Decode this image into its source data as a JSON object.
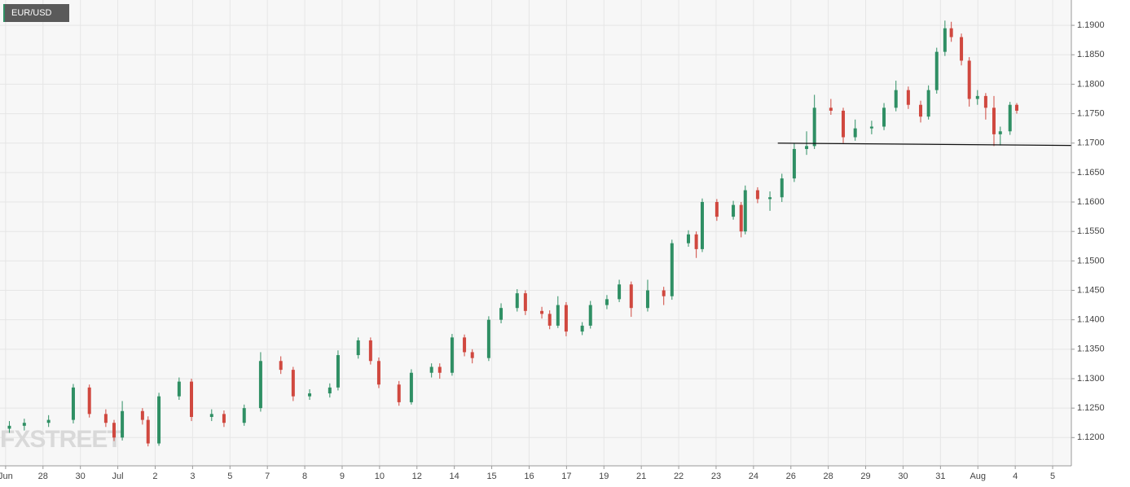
{
  "chart_data": {
    "type": "candlestick",
    "title": "EUR/USD",
    "watermark": "FXSTREET",
    "up_color": "#2f8f64",
    "down_color": "#d0483f",
    "grid": true,
    "xlim": [
      -0.15,
      28.5
    ],
    "ylim": [
      1.1152,
      1.1943
    ],
    "xticks": [
      {
        "value": 0,
        "label": "Jun"
      },
      {
        "value": 1,
        "label": "28"
      },
      {
        "value": 2,
        "label": "30"
      },
      {
        "value": 3,
        "label": "Jul"
      },
      {
        "value": 4,
        "label": "2"
      },
      {
        "value": 5,
        "label": "3"
      },
      {
        "value": 6,
        "label": "5"
      },
      {
        "value": 7,
        "label": "7"
      },
      {
        "value": 8,
        "label": "8"
      },
      {
        "value": 9,
        "label": "9"
      },
      {
        "value": 10,
        "label": "10"
      },
      {
        "value": 11,
        "label": "12"
      },
      {
        "value": 12,
        "label": "14"
      },
      {
        "value": 13,
        "label": "15"
      },
      {
        "value": 14,
        "label": "16"
      },
      {
        "value": 15,
        "label": "17"
      },
      {
        "value": 16,
        "label": "19"
      },
      {
        "value": 17,
        "label": "21"
      },
      {
        "value": 18,
        "label": "22"
      },
      {
        "value": 19,
        "label": "23"
      },
      {
        "value": 20,
        "label": "24"
      },
      {
        "value": 21,
        "label": "26"
      },
      {
        "value": 22,
        "label": "28"
      },
      {
        "value": 23,
        "label": "29"
      },
      {
        "value": 24,
        "label": "30"
      },
      {
        "value": 25,
        "label": "31"
      },
      {
        "value": 26,
        "label": "Aug"
      },
      {
        "value": 27,
        "label": "4"
      },
      {
        "value": 28,
        "label": "5"
      }
    ],
    "yticks": [
      {
        "value": 1.12,
        "label": "1.1200"
      },
      {
        "value": 1.125,
        "label": "1.1250"
      },
      {
        "value": 1.13,
        "label": "1.1300"
      },
      {
        "value": 1.135,
        "label": "1.1350"
      },
      {
        "value": 1.14,
        "label": "1.1400"
      },
      {
        "value": 1.145,
        "label": "1.1450"
      },
      {
        "value": 1.15,
        "label": "1.1500"
      },
      {
        "value": 1.155,
        "label": "1.1550"
      },
      {
        "value": 1.16,
        "label": "1.1600"
      },
      {
        "value": 1.165,
        "label": "1.1650"
      },
      {
        "value": 1.17,
        "label": "1.1700"
      },
      {
        "value": 1.175,
        "label": "1.1750"
      },
      {
        "value": 1.18,
        "label": "1.1800"
      },
      {
        "value": 1.185,
        "label": "1.1850"
      },
      {
        "value": 1.19,
        "label": "1.1900"
      }
    ],
    "x": [
      0.1,
      0.5,
      1.15,
      1.81,
      2.24,
      2.68,
      2.9,
      3.12,
      3.66,
      3.81,
      4.1,
      4.64,
      4.97,
      5.51,
      5.84,
      6.38,
      6.82,
      7.36,
      7.69,
      8.13,
      8.67,
      8.89,
      9.43,
      9.76,
      9.98,
      10.52,
      10.85,
      11.39,
      11.61,
      11.94,
      12.27,
      12.48,
      12.92,
      13.25,
      13.68,
      13.9,
      14.34,
      14.55,
      14.77,
      14.99,
      15.42,
      15.64,
      16.08,
      16.41,
      16.73,
      17.17,
      17.6,
      17.82,
      18.26,
      18.47,
      18.63,
      19.02,
      19.46,
      19.67,
      19.78,
      20.11,
      20.44,
      20.76,
      21.09,
      21.42,
      21.63,
      22.07,
      22.4,
      22.72,
      23.16,
      23.49,
      23.81,
      24.14,
      24.47,
      24.68,
      24.9,
      25.12,
      25.29,
      25.56,
      25.77,
      25.99,
      26.21,
      26.43,
      26.6,
      26.86,
      27.04
    ],
    "open": [
      1.1215,
      1.122,
      1.1225,
      1.123,
      1.1285,
      1.124,
      1.1225,
      1.12,
      1.1245,
      1.123,
      1.119,
      1.127,
      1.1295,
      1.1235,
      1.124,
      1.1225,
      1.125,
      1.133,
      1.1315,
      1.127,
      1.1275,
      1.1285,
      1.134,
      1.1365,
      1.133,
      1.129,
      1.126,
      1.131,
      1.132,
      1.131,
      1.137,
      1.1345,
      1.1335,
      1.14,
      1.142,
      1.1445,
      1.1415,
      1.141,
      1.139,
      1.1425,
      1.138,
      1.139,
      1.1425,
      1.1435,
      1.146,
      1.142,
      1.145,
      1.144,
      1.153,
      1.1545,
      1.152,
      1.16,
      1.1575,
      1.1595,
      1.155,
      1.162,
      1.1605,
      1.1608,
      1.164,
      1.169,
      1.1695,
      1.176,
      1.1755,
      1.171,
      1.1725,
      1.1728,
      1.176,
      1.179,
      1.1765,
      1.1745,
      1.179,
      1.1855,
      1.1895,
      1.188,
      1.184,
      1.1775,
      1.178,
      1.176,
      1.1715,
      1.172,
      1.1765
    ],
    "high": [
      1.1228,
      1.1232,
      1.1238,
      1.1291,
      1.129,
      1.1248,
      1.123,
      1.1262,
      1.125,
      1.1236,
      1.1276,
      1.1302,
      1.13,
      1.1248,
      1.1246,
      1.1256,
      1.1345,
      1.1338,
      1.132,
      1.1282,
      1.1292,
      1.1348,
      1.137,
      1.137,
      1.1336,
      1.1296,
      1.1316,
      1.1326,
      1.1326,
      1.1376,
      1.1375,
      1.135,
      1.1406,
      1.1428,
      1.1452,
      1.145,
      1.1422,
      1.1416,
      1.144,
      1.143,
      1.1396,
      1.1432,
      1.1442,
      1.1468,
      1.1465,
      1.1468,
      1.1456,
      1.1536,
      1.1552,
      1.155,
      1.1606,
      1.1605,
      1.1602,
      1.16,
      1.1628,
      1.1625,
      1.1618,
      1.1648,
      1.17,
      1.172,
      1.1782,
      1.1775,
      1.176,
      1.174,
      1.1738,
      1.1768,
      1.1806,
      1.1796,
      1.1772,
      1.1798,
      1.1862,
      1.1908,
      1.1906,
      1.1886,
      1.1846,
      1.179,
      1.1785,
      1.178,
      1.1728,
      1.177,
      1.1768
    ],
    "low": [
      1.1208,
      1.1212,
      1.1218,
      1.1224,
      1.1234,
      1.1218,
      1.1194,
      1.1195,
      1.1222,
      1.1185,
      1.1186,
      1.1264,
      1.1228,
      1.1228,
      1.1218,
      1.122,
      1.1244,
      1.1308,
      1.1262,
      1.1264,
      1.1268,
      1.128,
      1.1334,
      1.1324,
      1.1284,
      1.1254,
      1.1256,
      1.1302,
      1.13,
      1.1305,
      1.1338,
      1.1326,
      1.133,
      1.1394,
      1.1414,
      1.1408,
      1.1402,
      1.1384,
      1.1386,
      1.1372,
      1.1374,
      1.1385,
      1.1418,
      1.143,
      1.1405,
      1.1414,
      1.1425,
      1.1434,
      1.1524,
      1.1505,
      1.1515,
      1.1568,
      1.157,
      1.154,
      1.1545,
      1.1598,
      1.1585,
      1.16,
      1.1634,
      1.168,
      1.169,
      1.1748,
      1.17,
      1.1704,
      1.1715,
      1.1722,
      1.1754,
      1.1758,
      1.1735,
      1.174,
      1.1784,
      1.1848,
      1.1872,
      1.1832,
      1.1762,
      1.1765,
      1.174,
      1.1695,
      1.1696,
      1.1714,
      1.175
    ],
    "close": [
      1.122,
      1.1225,
      1.123,
      1.1285,
      1.124,
      1.1225,
      1.12,
      1.1245,
      1.123,
      1.119,
      1.127,
      1.1295,
      1.1235,
      1.124,
      1.1225,
      1.125,
      1.133,
      1.1315,
      1.127,
      1.1275,
      1.1285,
      1.134,
      1.1365,
      1.133,
      1.129,
      1.126,
      1.131,
      1.132,
      1.131,
      1.137,
      1.1345,
      1.1335,
      1.14,
      1.142,
      1.1445,
      1.1415,
      1.141,
      1.139,
      1.1425,
      1.138,
      1.139,
      1.1425,
      1.1435,
      1.146,
      1.142,
      1.145,
      1.144,
      1.153,
      1.1545,
      1.152,
      1.16,
      1.1575,
      1.1595,
      1.155,
      1.162,
      1.1605,
      1.1608,
      1.164,
      1.169,
      1.1695,
      1.176,
      1.1755,
      1.171,
      1.1725,
      1.1728,
      1.176,
      1.179,
      1.1765,
      1.1745,
      1.179,
      1.1855,
      1.1895,
      1.188,
      1.184,
      1.1775,
      1.178,
      1.176,
      1.1715,
      1.172,
      1.1765,
      1.1755
    ],
    "trendline": {
      "x": [
        20.65,
        28.5
      ],
      "y": [
        1.17,
        1.1696
      ],
      "color": "#111111"
    }
  }
}
